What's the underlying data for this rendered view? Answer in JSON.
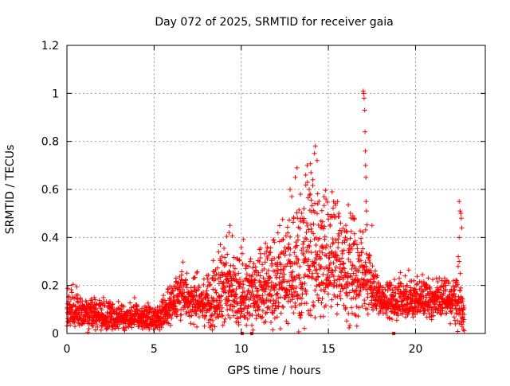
{
  "chart_data": {
    "type": "scatter",
    "title": "Day 072 of 2025, SRMTID for receiver gaia",
    "xlabel": "GPS time / hours",
    "ylabel": "SRMTID / TECUs",
    "xlim": [
      0,
      24
    ],
    "ylim": [
      0,
      1.2
    ],
    "x_ticks": [
      0,
      5,
      10,
      15,
      20
    ],
    "x_tick_labels": [
      "0",
      "5",
      "10",
      "15",
      "20"
    ],
    "y_ticks": [
      0,
      0.2,
      0.4,
      0.6,
      0.8,
      1.0,
      1.2
    ],
    "y_tick_labels": [
      "0",
      "0.2",
      "0.4",
      "0.6",
      "0.8",
      "1",
      "1.2"
    ],
    "grid": true,
    "marker": "+",
    "series": [
      {
        "name": "SRMTID",
        "color": "#ff0000",
        "profile": {
          "hours": [
            0,
            0.5,
            1,
            2,
            3,
            4,
            5,
            5.5,
            6,
            6.5,
            7,
            8,
            9,
            10,
            11,
            12,
            13,
            14,
            15,
            16,
            16.5,
            17,
            18,
            19,
            20,
            21,
            22,
            22.5,
            22.8
          ],
          "baseline": [
            0.09,
            0.09,
            0.08,
            0.07,
            0.06,
            0.06,
            0.06,
            0.08,
            0.12,
            0.16,
            0.14,
            0.12,
            0.17,
            0.16,
            0.18,
            0.2,
            0.24,
            0.3,
            0.3,
            0.26,
            0.24,
            0.24,
            0.14,
            0.12,
            0.14,
            0.14,
            0.13,
            0.14,
            0.06
          ],
          "spread": [
            0.04,
            0.04,
            0.04,
            0.04,
            0.03,
            0.03,
            0.03,
            0.04,
            0.05,
            0.06,
            0.05,
            0.06,
            0.1,
            0.08,
            0.1,
            0.1,
            0.14,
            0.18,
            0.14,
            0.12,
            0.12,
            0.1,
            0.04,
            0.05,
            0.05,
            0.05,
            0.05,
            0.08,
            0.04
          ],
          "samples_per_hour": 120
        },
        "peaks": [
          {
            "x": 8.7,
            "y": 0.34
          },
          {
            "x": 8.8,
            "y": 0.37
          },
          {
            "x": 9.2,
            "y": 0.33
          },
          {
            "x": 9.3,
            "y": 0.42
          },
          {
            "x": 9.35,
            "y": 0.45
          },
          {
            "x": 11.5,
            "y": 0.36
          },
          {
            "x": 11.9,
            "y": 0.38
          },
          {
            "x": 12.8,
            "y": 0.6
          },
          {
            "x": 12.9,
            "y": 0.57
          },
          {
            "x": 13.1,
            "y": 0.65
          },
          {
            "x": 13.2,
            "y": 0.69
          },
          {
            "x": 13.4,
            "y": 0.58
          },
          {
            "x": 13.6,
            "y": 0.52
          },
          {
            "x": 13.7,
            "y": 0.66
          },
          {
            "x": 13.8,
            "y": 0.63
          },
          {
            "x": 13.9,
            "y": 0.6
          },
          {
            "x": 14.0,
            "y": 0.67
          },
          {
            "x": 14.1,
            "y": 0.64
          },
          {
            "x": 14.2,
            "y": 0.75
          },
          {
            "x": 14.25,
            "y": 0.78
          },
          {
            "x": 14.35,
            "y": 0.72
          },
          {
            "x": 14.6,
            "y": 0.45
          },
          {
            "x": 15.3,
            "y": 0.55
          },
          {
            "x": 15.6,
            "y": 0.5
          },
          {
            "x": 16.0,
            "y": 0.45
          },
          {
            "x": 16.4,
            "y": 0.49
          },
          {
            "x": 16.5,
            "y": 0.48
          },
          {
            "x": 17.0,
            "y": 1.01
          },
          {
            "x": 17.02,
            "y": 1.0
          },
          {
            "x": 17.05,
            "y": 0.98
          },
          {
            "x": 17.08,
            "y": 0.93
          },
          {
            "x": 17.1,
            "y": 0.84
          },
          {
            "x": 17.12,
            "y": 0.76
          },
          {
            "x": 17.13,
            "y": 0.7
          },
          {
            "x": 17.15,
            "y": 0.65
          },
          {
            "x": 17.16,
            "y": 0.55
          },
          {
            "x": 17.18,
            "y": 0.51
          },
          {
            "x": 17.5,
            "y": 0.45
          },
          {
            "x": 19.4,
            "y": 0.24
          },
          {
            "x": 21.2,
            "y": 0.23
          },
          {
            "x": 22.5,
            "y": 0.55
          },
          {
            "x": 22.55,
            "y": 0.51
          },
          {
            "x": 22.6,
            "y": 0.5
          },
          {
            "x": 22.62,
            "y": 0.48
          },
          {
            "x": 22.65,
            "y": 0.44
          },
          {
            "x": 22.5,
            "y": 0.4
          },
          {
            "x": 22.45,
            "y": 0.32
          },
          {
            "x": 22.5,
            "y": 0.3
          }
        ],
        "zeros": [
          {
            "x": 10.05,
            "y": 0
          },
          {
            "x": 10.6,
            "y": 0
          },
          {
            "x": 18.75,
            "y": 0
          }
        ]
      }
    ]
  }
}
